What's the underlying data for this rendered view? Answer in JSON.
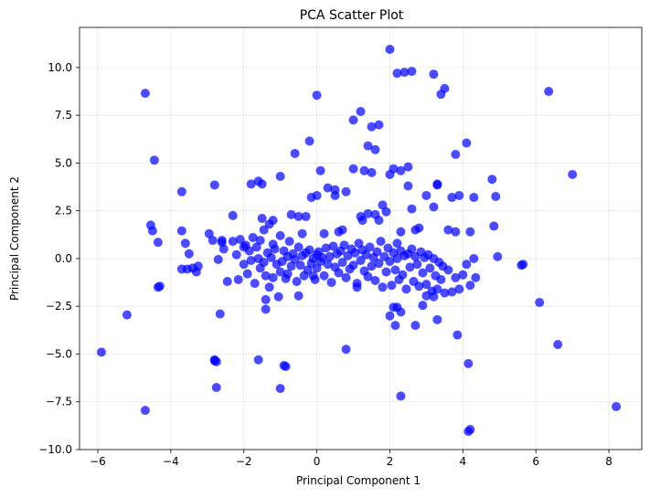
{
  "chart_data": {
    "type": "scatter",
    "title": "PCA Scatter Plot",
    "xlabel": "Principal Component 1",
    "ylabel": "Principal Component 2",
    "xlim": [
      -6.5,
      8.9
    ],
    "ylim": [
      -10,
      12.1
    ],
    "xticks": [
      -6,
      -4,
      -2,
      0,
      2,
      4,
      6,
      8
    ],
    "xtick_labels": [
      "−6",
      "−4",
      "−2",
      "0",
      "2",
      "4",
      "6",
      "8"
    ],
    "yticks": [
      -10,
      -7.5,
      -5,
      -2.5,
      0,
      2.5,
      5,
      7.5,
      10
    ],
    "ytick_labels": [
      "−10.0",
      "−7.5",
      "−5.0",
      "−2.5",
      "0.0",
      "2.5",
      "5.0",
      "7.5",
      "10.0"
    ],
    "grid": true,
    "point_color": "#0000ff",
    "point_alpha": 0.7,
    "series": [
      {
        "x": [
          -5.9,
          -5.2,
          -4.7,
          -4.7,
          -4.55,
          -4.45,
          -4.35,
          -4.3,
          -3.7,
          -3.7,
          -3.6,
          -3.5,
          -3.4,
          -3.3,
          -3.25,
          -2.95,
          -2.85,
          -2.8,
          -2.8,
          -2.75,
          -2.7,
          -2.65,
          -2.6,
          -2.55,
          -2.45,
          -2.3,
          -2.2,
          -2.15,
          -2.1,
          -2.0,
          -1.95,
          -1.9,
          -1.85,
          -1.8,
          -1.75,
          -1.7,
          -1.65,
          -1.6,
          -1.55,
          -1.55,
          -1.5,
          -1.45,
          -1.45,
          -1.4,
          -1.35,
          -1.3,
          -1.3,
          -1.25,
          -1.2,
          -1.2,
          -1.15,
          -1.1,
          -1.05,
          -1.0,
          -1.0,
          -0.95,
          -0.9,
          -0.85,
          -0.8,
          -0.8,
          -0.75,
          -0.7,
          -0.65,
          -0.6,
          -0.55,
          -0.5,
          -0.45,
          -0.4,
          -0.35,
          -0.3,
          -0.25,
          -0.2,
          -0.15,
          -0.1,
          -0.05,
          0.0,
          0.0,
          0.05,
          0.1,
          0.15,
          0.2,
          0.25,
          0.3,
          0.35,
          0.4,
          0.45,
          0.5,
          0.55,
          0.6,
          0.65,
          0.7,
          0.75,
          0.8,
          0.85,
          0.9,
          0.95,
          1.0,
          1.05,
          1.1,
          1.15,
          1.2,
          1.25,
          1.3,
          1.35,
          1.4,
          1.45,
          1.5,
          1.55,
          1.6,
          1.65,
          1.7,
          1.75,
          1.8,
          1.85,
          1.9,
          1.95,
          2.0,
          2.05,
          2.1,
          2.15,
          2.2,
          2.25,
          2.3,
          2.35,
          2.4,
          2.45,
          2.5,
          2.55,
          2.6,
          2.65,
          2.7,
          2.75,
          2.8,
          2.85,
          2.9,
          2.95,
          3.0,
          3.05,
          3.1,
          3.15,
          3.2,
          3.25,
          3.3,
          3.35,
          3.4,
          3.45,
          3.5,
          3.6,
          3.7,
          3.8,
          3.9,
          4.0,
          4.1,
          4.2,
          4.3,
          4.35,
          -1.0,
          -0.5,
          0.0,
          0.5,
          1.0,
          1.5,
          2.0,
          2.5,
          3.0,
          -1.8,
          -1.2,
          -0.7,
          0.3,
          0.8,
          1.3,
          1.8,
          2.3,
          2.8,
          3.3,
          3.8,
          -2.0,
          -1.5,
          0.2,
          0.7,
          1.2,
          1.7,
          2.2,
          2.7,
          3.2,
          3.7,
          4.2,
          -0.3,
          0.6,
          1.6,
          2.6,
          3.6,
          1.4,
          2.0,
          2.2,
          2.4,
          2.6,
          3.2,
          3.4,
          -0.2,
          0.0,
          1.0,
          1.2,
          1.5,
          2.1,
          2.3,
          2.5,
          3.3,
          3.5,
          4.1,
          4.3,
          4.8,
          4.9,
          5.6,
          5.65,
          6.1,
          6.35,
          6.6,
          7.0,
          8.2,
          4.15,
          4.2,
          4.15,
          3.8,
          3.3,
          2.3,
          0.8,
          -1.4,
          -1.6,
          -1.0,
          -0.9,
          -0.85,
          -2.8,
          -2.75,
          -2.6,
          -4.35,
          -4.5,
          -3.7,
          -3.55,
          -2.3,
          -0.1,
          -0.5,
          -0.4,
          1.6,
          1.4,
          0.1,
          -0.6,
          -1.6,
          -1.4,
          2.2,
          2.9,
          3.0,
          3.2,
          2.0,
          2.1,
          1.1,
          0.5,
          -0.15,
          3.9,
          4.95,
          4.85,
          3.85,
          2.15,
          2.7,
          2.3,
          1.9,
          1.7,
          1.25
        ],
        "y": [
          -4.9,
          -2.95,
          8.65,
          -7.95,
          1.75,
          5.15,
          -1.5,
          -1.45,
          3.5,
          1.45,
          0.8,
          0.25,
          -0.5,
          -0.7,
          -0.4,
          1.3,
          0.95,
          3.85,
          -5.3,
          -6.75,
          -0.05,
          -2.9,
          0.85,
          0.5,
          -1.2,
          0.9,
          0.2,
          -1.1,
          1.0,
          -0.3,
          0.7,
          -0.8,
          0.4,
          -0.1,
          1.1,
          -1.3,
          0.6,
          0.0,
          0.95,
          -0.5,
          2.1,
          -0.2,
          1.5,
          -0.9,
          0.3,
          1.8,
          -1.5,
          0.05,
          0.75,
          -1.0,
          0.5,
          -0.3,
          -2.0,
          1.2,
          -0.7,
          -0.15,
          0.4,
          -1.05,
          0.1,
          -0.8,
          0.9,
          -0.4,
          0.25,
          -0.05,
          -1.2,
          0.6,
          -0.35,
          0.15,
          -0.9,
          0.3,
          -0.6,
          0.45,
          -0.25,
          0.0,
          -1.1,
          0.2,
          -0.5,
          0.35,
          -0.15,
          0.05,
          -0.9,
          0.55,
          -0.3,
          0.1,
          -1.25,
          0.65,
          -0.45,
          0.25,
          -0.75,
          0.4,
          -0.2,
          0.7,
          -1.0,
          0.15,
          -0.55,
          0.5,
          -0.35,
          0.3,
          -1.3,
          0.8,
          -0.1,
          0.45,
          -0.65,
          0.2,
          -0.95,
          0.6,
          -0.4,
          0.05,
          -1.15,
          0.35,
          -0.25,
          0.9,
          -1.5,
          0.1,
          -0.7,
          0.55,
          -0.15,
          -1.4,
          0.3,
          -0.6,
          0.0,
          -1.1,
          0.4,
          -0.85,
          0.15,
          -1.6,
          0.25,
          -0.45,
          0.5,
          -1.2,
          0.1,
          -0.3,
          -1.45,
          0.35,
          -0.75,
          0.05,
          -1.35,
          0.2,
          -0.5,
          -1.7,
          0.0,
          -0.9,
          -1.6,
          -0.2,
          -1.1,
          -0.4,
          -1.8,
          -0.6,
          -1.75,
          -1.0,
          -1.6,
          -0.85,
          -0.3,
          -1.4,
          0.0,
          -1.0,
          4.3,
          2.2,
          3.3,
          3.6,
          4.7,
          4.5,
          4.4,
          3.8,
          3.3,
          3.9,
          2.0,
          2.3,
          3.7,
          3.5,
          4.6,
          2.8,
          1.4,
          1.6,
          3.9,
          1.4,
          0.6,
          3.9,
          1.3,
          1.5,
          2.2,
          2.0,
          0.8,
          1.5,
          2.7,
          3.2,
          1.4,
          2.2,
          1.4,
          5.7,
          2.6,
          1.5,
          5.9,
          10.95,
          9.7,
          9.75,
          9.8,
          9.65,
          8.6,
          6.15,
          8.55,
          7.25,
          7.7,
          6.9,
          4.7,
          4.6,
          4.8,
          3.85,
          8.9,
          6.05,
          3.2,
          4.15,
          3.25,
          -0.35,
          -0.3,
          -2.3,
          8.75,
          -4.5,
          4.4,
          -7.75,
          -5.5,
          -8.95,
          -9.05,
          5.45,
          -3.2,
          -7.2,
          -4.75,
          -2.15,
          -5.3,
          -6.8,
          -5.6,
          -5.65,
          -5.35,
          -5.4,
          0.95,
          0.85,
          1.45,
          -0.55,
          -0.55,
          2.25,
          -0.9,
          -1.95,
          1.3,
          2.3,
          2.35,
          4.6,
          5.5,
          4.05,
          -2.65,
          -2.55,
          -2.45,
          -1.95,
          -2.0,
          -3.0,
          -2.55,
          -1.5,
          3.3,
          3.2,
          3.3,
          0.1,
          1.7,
          -4.0,
          -3.5,
          -3.5,
          -2.8,
          2.45,
          7.0,
          2.0
        ],
        "marker_size": 5
      }
    ]
  }
}
